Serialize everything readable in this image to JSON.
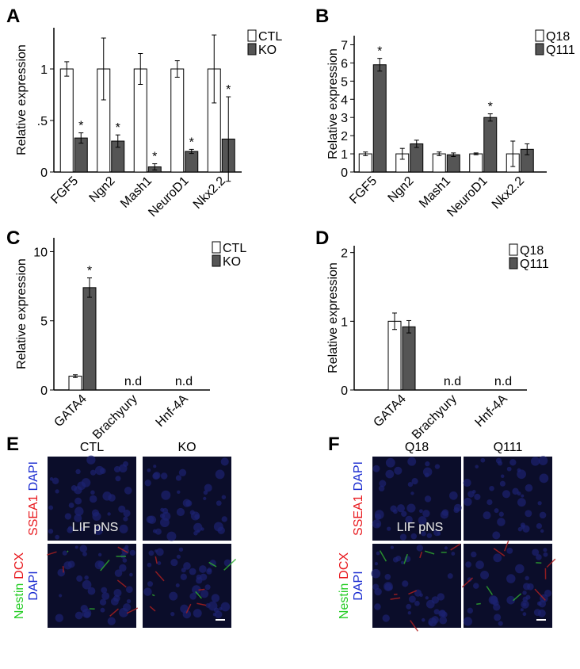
{
  "chart_data": [
    {
      "type": "bar",
      "letter": "A",
      "y_label": "Relative expression",
      "categories": [
        "FGF5",
        "Ngn2",
        "Mash1",
        "NeuroD1",
        "Nkx2.2"
      ],
      "series": [
        {
          "name": "CTL",
          "color": "#ffffff",
          "values": [
            1,
            1,
            1,
            1,
            1
          ],
          "errors": [
            0.07,
            0.3,
            0.15,
            0.08,
            0.33
          ],
          "significance": [
            null,
            null,
            null,
            null,
            null
          ]
        },
        {
          "name": "KO",
          "color": "#555555",
          "values": [
            0.33,
            0.3,
            0.05,
            0.2,
            0.32
          ],
          "errors": [
            0.05,
            0.06,
            0.03,
            0.02,
            0.41
          ],
          "significance": [
            "*",
            "*",
            "*",
            "*",
            "*"
          ]
        }
      ],
      "ylim": [
        0,
        1.4
      ],
      "yticks": [
        0,
        {
          "value": 0.5,
          "label": ".5"
        },
        1
      ],
      "grid": false,
      "legend": "top-right"
    },
    {
      "type": "bar",
      "letter": "B",
      "y_label": "Relative expression",
      "categories": [
        "FGF5",
        "Ngn2",
        "Mash1",
        "NeuroD1",
        "Nkx2.2"
      ],
      "series": [
        {
          "name": "Q18",
          "color": "#ffffff",
          "values": [
            1,
            1,
            1,
            1,
            1
          ],
          "errors": [
            0.1,
            0.3,
            0.1,
            0.05,
            0.7
          ],
          "significance": [
            null,
            null,
            null,
            null,
            null
          ]
        },
        {
          "name": "Q111",
          "color": "#555555",
          "values": [
            5.9,
            1.55,
            0.95,
            3.0,
            1.25
          ],
          "errors": [
            0.35,
            0.2,
            0.1,
            0.2,
            0.3
          ],
          "significance": [
            "*",
            null,
            null,
            "*",
            null
          ]
        }
      ],
      "ylim": [
        0,
        7.5
      ],
      "yticks": [
        0,
        1,
        2,
        3,
        4,
        5,
        6,
        7
      ],
      "grid": false,
      "legend": "top-right"
    },
    {
      "type": "bar",
      "letter": "C",
      "y_label": "Relative expression",
      "categories": [
        "GATA4",
        "Brachyury",
        "Hnf-4A"
      ],
      "category_notes": [
        null,
        "n.d",
        "n.d"
      ],
      "series": [
        {
          "name": "CTL",
          "color": "#ffffff",
          "values": [
            1,
            null,
            null
          ],
          "errors": [
            0.1,
            null,
            null
          ],
          "significance": [
            null,
            null,
            null
          ]
        },
        {
          "name": "KO",
          "color": "#555555",
          "values": [
            7.4,
            null,
            null
          ],
          "errors": [
            0.7,
            null,
            null
          ],
          "significance": [
            "*",
            null,
            null
          ]
        }
      ],
      "ylim": [
        0,
        11
      ],
      "yticks": [
        0,
        5,
        10
      ],
      "grid": false,
      "legend": "top-right"
    },
    {
      "type": "bar",
      "letter": "D",
      "y_label": "Relative expression",
      "categories": [
        "GATA4",
        "Brachyury",
        "Hnf-4A"
      ],
      "category_notes": [
        null,
        "n.d",
        "n.d"
      ],
      "series": [
        {
          "name": "Q18",
          "color": "#ffffff",
          "values": [
            1,
            null,
            null
          ],
          "errors": [
            0.12,
            null,
            null
          ],
          "significance": [
            null,
            null,
            null
          ]
        },
        {
          "name": "Q111",
          "color": "#555555",
          "values": [
            0.92,
            null,
            null
          ],
          "errors": [
            0.09,
            null,
            null
          ],
          "significance": [
            null,
            null,
            null
          ]
        }
      ],
      "ylim": [
        0,
        2.1
      ],
      "yticks": [
        0,
        1,
        2
      ],
      "grid": false,
      "legend": "top-right"
    }
  ],
  "image_panels": [
    {
      "letter": "E",
      "columns": [
        "CTL",
        "KO"
      ],
      "overlay": "LIF pNS",
      "rows": [
        {
          "label_lines": [
            [
              {
                "text": "SSEA1",
                "color": "#e8191e"
              },
              {
                "text": "DAPI",
                "color": "#1a2bd0"
              }
            ]
          ]
        },
        {
          "label_lines": [
            [
              {
                "text": "Nestin",
                "color": "#22cc22"
              },
              {
                "text": "DCX",
                "color": "#e8191e"
              }
            ],
            [
              {
                "text": "DAPI",
                "color": "#1a2bd0"
              }
            ]
          ]
        }
      ]
    },
    {
      "letter": "F",
      "columns": [
        "Q18",
        "Q111"
      ],
      "overlay": "LIF pNS",
      "rows": [
        {
          "label_lines": [
            [
              {
                "text": "SSEA1",
                "color": "#e8191e"
              },
              {
                "text": "DAPI",
                "color": "#1a2bd0"
              }
            ]
          ]
        },
        {
          "label_lines": [
            [
              {
                "text": "Nestin",
                "color": "#22cc22"
              },
              {
                "text": "DCX",
                "color": "#e8191e"
              }
            ],
            [
              {
                "text": "DAPI",
                "color": "#1a2bd0"
              }
            ]
          ]
        }
      ]
    }
  ]
}
